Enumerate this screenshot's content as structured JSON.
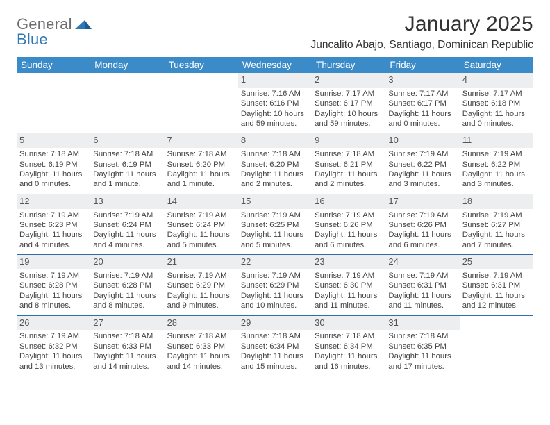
{
  "brand": {
    "general": "General",
    "blue": "Blue"
  },
  "title": "January 2025",
  "location": "Juncalito Abajo, Santiago, Dominican Republic",
  "colors": {
    "header_blue": "#3b8bc9",
    "divider": "#2f6ea8",
    "daynum_bg": "#eceeef",
    "page_bg": "#ffffff",
    "text": "#222222"
  },
  "calendar": {
    "type": "table",
    "columns": [
      "Sunday",
      "Monday",
      "Tuesday",
      "Wednesday",
      "Thursday",
      "Friday",
      "Saturday"
    ],
    "first_weekday_index": 3,
    "days": [
      {
        "n": 1,
        "sunrise": "7:16 AM",
        "sunset": "6:16 PM",
        "daylight_l1": "Daylight: 10 hours",
        "daylight_l2": "and 59 minutes."
      },
      {
        "n": 2,
        "sunrise": "7:17 AM",
        "sunset": "6:17 PM",
        "daylight_l1": "Daylight: 10 hours",
        "daylight_l2": "and 59 minutes."
      },
      {
        "n": 3,
        "sunrise": "7:17 AM",
        "sunset": "6:17 PM",
        "daylight_l1": "Daylight: 11 hours",
        "daylight_l2": "and 0 minutes."
      },
      {
        "n": 4,
        "sunrise": "7:17 AM",
        "sunset": "6:18 PM",
        "daylight_l1": "Daylight: 11 hours",
        "daylight_l2": "and 0 minutes."
      },
      {
        "n": 5,
        "sunrise": "7:18 AM",
        "sunset": "6:19 PM",
        "daylight_l1": "Daylight: 11 hours",
        "daylight_l2": "and 0 minutes."
      },
      {
        "n": 6,
        "sunrise": "7:18 AM",
        "sunset": "6:19 PM",
        "daylight_l1": "Daylight: 11 hours",
        "daylight_l2": "and 1 minute."
      },
      {
        "n": 7,
        "sunrise": "7:18 AM",
        "sunset": "6:20 PM",
        "daylight_l1": "Daylight: 11 hours",
        "daylight_l2": "and 1 minute."
      },
      {
        "n": 8,
        "sunrise": "7:18 AM",
        "sunset": "6:20 PM",
        "daylight_l1": "Daylight: 11 hours",
        "daylight_l2": "and 2 minutes."
      },
      {
        "n": 9,
        "sunrise": "7:18 AM",
        "sunset": "6:21 PM",
        "daylight_l1": "Daylight: 11 hours",
        "daylight_l2": "and 2 minutes."
      },
      {
        "n": 10,
        "sunrise": "7:19 AM",
        "sunset": "6:22 PM",
        "daylight_l1": "Daylight: 11 hours",
        "daylight_l2": "and 3 minutes."
      },
      {
        "n": 11,
        "sunrise": "7:19 AM",
        "sunset": "6:22 PM",
        "daylight_l1": "Daylight: 11 hours",
        "daylight_l2": "and 3 minutes."
      },
      {
        "n": 12,
        "sunrise": "7:19 AM",
        "sunset": "6:23 PM",
        "daylight_l1": "Daylight: 11 hours",
        "daylight_l2": "and 4 minutes."
      },
      {
        "n": 13,
        "sunrise": "7:19 AM",
        "sunset": "6:24 PM",
        "daylight_l1": "Daylight: 11 hours",
        "daylight_l2": "and 4 minutes."
      },
      {
        "n": 14,
        "sunrise": "7:19 AM",
        "sunset": "6:24 PM",
        "daylight_l1": "Daylight: 11 hours",
        "daylight_l2": "and 5 minutes."
      },
      {
        "n": 15,
        "sunrise": "7:19 AM",
        "sunset": "6:25 PM",
        "daylight_l1": "Daylight: 11 hours",
        "daylight_l2": "and 5 minutes."
      },
      {
        "n": 16,
        "sunrise": "7:19 AM",
        "sunset": "6:26 PM",
        "daylight_l1": "Daylight: 11 hours",
        "daylight_l2": "and 6 minutes."
      },
      {
        "n": 17,
        "sunrise": "7:19 AM",
        "sunset": "6:26 PM",
        "daylight_l1": "Daylight: 11 hours",
        "daylight_l2": "and 6 minutes."
      },
      {
        "n": 18,
        "sunrise": "7:19 AM",
        "sunset": "6:27 PM",
        "daylight_l1": "Daylight: 11 hours",
        "daylight_l2": "and 7 minutes."
      },
      {
        "n": 19,
        "sunrise": "7:19 AM",
        "sunset": "6:28 PM",
        "daylight_l1": "Daylight: 11 hours",
        "daylight_l2": "and 8 minutes."
      },
      {
        "n": 20,
        "sunrise": "7:19 AM",
        "sunset": "6:28 PM",
        "daylight_l1": "Daylight: 11 hours",
        "daylight_l2": "and 8 minutes."
      },
      {
        "n": 21,
        "sunrise": "7:19 AM",
        "sunset": "6:29 PM",
        "daylight_l1": "Daylight: 11 hours",
        "daylight_l2": "and 9 minutes."
      },
      {
        "n": 22,
        "sunrise": "7:19 AM",
        "sunset": "6:29 PM",
        "daylight_l1": "Daylight: 11 hours",
        "daylight_l2": "and 10 minutes."
      },
      {
        "n": 23,
        "sunrise": "7:19 AM",
        "sunset": "6:30 PM",
        "daylight_l1": "Daylight: 11 hours",
        "daylight_l2": "and 11 minutes."
      },
      {
        "n": 24,
        "sunrise": "7:19 AM",
        "sunset": "6:31 PM",
        "daylight_l1": "Daylight: 11 hours",
        "daylight_l2": "and 11 minutes."
      },
      {
        "n": 25,
        "sunrise": "7:19 AM",
        "sunset": "6:31 PM",
        "daylight_l1": "Daylight: 11 hours",
        "daylight_l2": "and 12 minutes."
      },
      {
        "n": 26,
        "sunrise": "7:19 AM",
        "sunset": "6:32 PM",
        "daylight_l1": "Daylight: 11 hours",
        "daylight_l2": "and 13 minutes."
      },
      {
        "n": 27,
        "sunrise": "7:18 AM",
        "sunset": "6:33 PM",
        "daylight_l1": "Daylight: 11 hours",
        "daylight_l2": "and 14 minutes."
      },
      {
        "n": 28,
        "sunrise": "7:18 AM",
        "sunset": "6:33 PM",
        "daylight_l1": "Daylight: 11 hours",
        "daylight_l2": "and 14 minutes."
      },
      {
        "n": 29,
        "sunrise": "7:18 AM",
        "sunset": "6:34 PM",
        "daylight_l1": "Daylight: 11 hours",
        "daylight_l2": "and 15 minutes."
      },
      {
        "n": 30,
        "sunrise": "7:18 AM",
        "sunset": "6:34 PM",
        "daylight_l1": "Daylight: 11 hours",
        "daylight_l2": "and 16 minutes."
      },
      {
        "n": 31,
        "sunrise": "7:18 AM",
        "sunset": "6:35 PM",
        "daylight_l1": "Daylight: 11 hours",
        "daylight_l2": "and 17 minutes."
      }
    ]
  }
}
